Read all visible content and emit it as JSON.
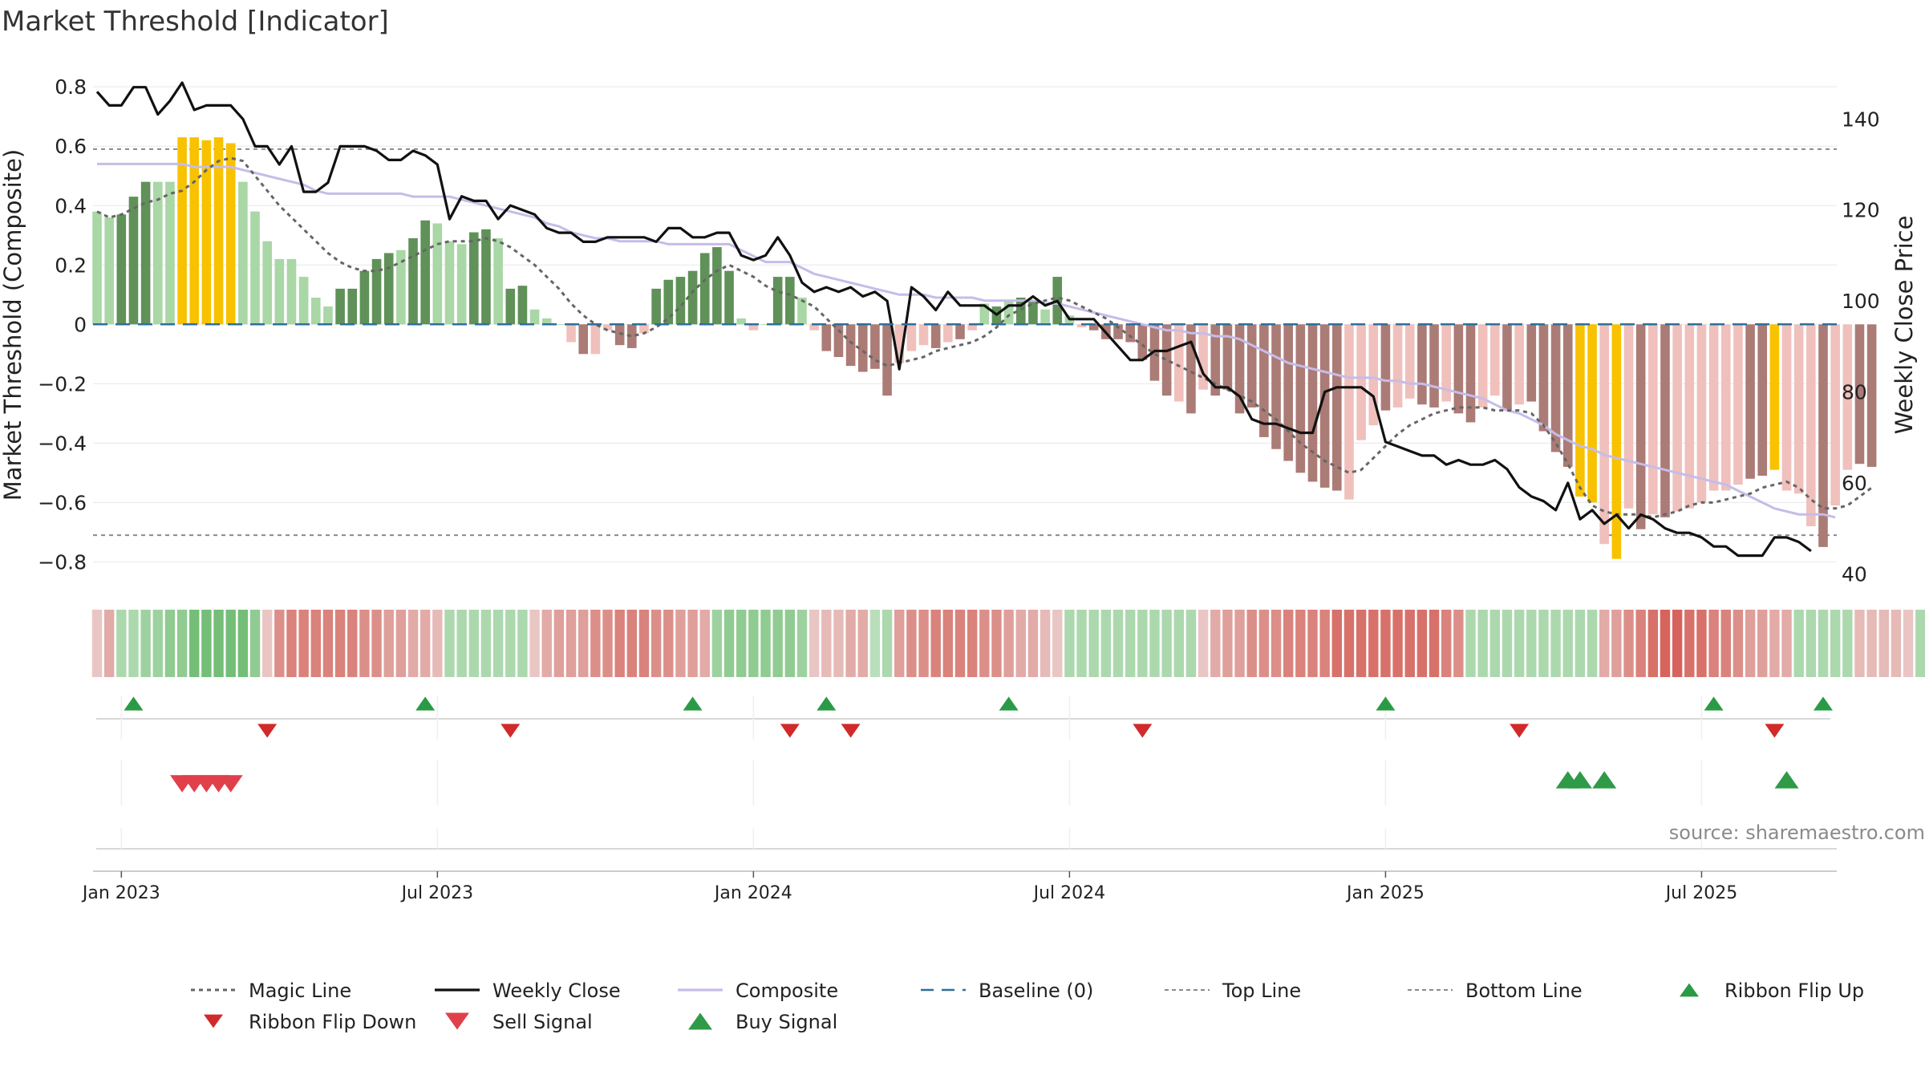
{
  "chart_data": {
    "type": "bar",
    "title": "Market Threshold [Indicator]",
    "ylabel": "Market Threshold (Composite)",
    "y2label": "Weekly Close Price",
    "source": "source: sharemaestro.com",
    "ylim": [
      -0.88,
      0.86
    ],
    "y2lim": [
      37.4,
      151.0
    ],
    "yticks": [
      0.8,
      0.6,
      0.4,
      0.2,
      0,
      -0.2,
      -0.4,
      -0.6,
      -0.8
    ],
    "ytick_labels": [
      "0.8",
      "0.6",
      "0.4",
      "0.2",
      "0",
      "−0.2",
      "−0.4",
      "−0.6",
      "−0.8"
    ],
    "y2ticks": [
      140,
      120,
      100,
      80,
      60,
      40
    ],
    "y2tick_labels": [
      "140",
      "120",
      "100",
      "80",
      "60",
      "40"
    ],
    "top_line": 0.59,
    "bottom_line": -0.71,
    "baseline": 0,
    "x_start": "2022-12-19",
    "weeks": 147,
    "xticks": [
      {
        "label": "Jan 2023",
        "week": 2
      },
      {
        "label": "Jul 2023",
        "week": 28
      },
      {
        "label": "Jan 2024",
        "week": 54
      },
      {
        "label": "Jul 2024",
        "week": 80
      },
      {
        "label": "Jan 2025",
        "week": 106
      },
      {
        "label": "Jul 2025",
        "week": 132
      }
    ],
    "composite_bars": [
      0.38,
      0.36,
      0.37,
      0.43,
      0.48,
      0.48,
      0.48,
      0.63,
      0.63,
      0.62,
      0.63,
      0.61,
      0.48,
      0.38,
      0.28,
      0.22,
      0.22,
      0.16,
      0.09,
      0.06,
      0.12,
      0.12,
      0.18,
      0.22,
      0.24,
      0.25,
      0.29,
      0.35,
      0.34,
      0.28,
      0.27,
      0.31,
      0.32,
      0.29,
      0.12,
      0.13,
      0.05,
      0.02,
      0,
      -0.06,
      -0.1,
      -0.1,
      -0.02,
      -0.07,
      -0.08,
      -0.03,
      0.12,
      0.15,
      0.16,
      0.18,
      0.24,
      0.26,
      0.18,
      0.02,
      -0.02,
      0,
      0.16,
      0.16,
      0.09,
      -0.02,
      -0.09,
      -0.11,
      -0.14,
      -0.16,
      -0.15,
      -0.24,
      -0.13,
      -0.09,
      -0.07,
      -0.08,
      -0.06,
      -0.05,
      -0.02,
      0.07,
      0.06,
      0.08,
      0.09,
      0.08,
      0.05,
      0.16,
      0.03,
      -0.01,
      -0.02,
      -0.05,
      -0.05,
      -0.06,
      -0.12,
      -0.19,
      -0.24,
      -0.26,
      -0.3,
      -0.22,
      -0.24,
      -0.22,
      -0.3,
      -0.28,
      -0.38,
      -0.42,
      -0.46,
      -0.5,
      -0.53,
      -0.55,
      -0.56,
      -0.59,
      -0.39,
      -0.34,
      -0.29,
      -0.28,
      -0.25,
      -0.27,
      -0.28,
      -0.26,
      -0.3,
      -0.33,
      -0.28,
      -0.24,
      -0.29,
      -0.27,
      -0.26,
      -0.36,
      -0.43,
      -0.48,
      -0.58,
      -0.6,
      -0.74,
      -0.79,
      -0.62,
      -0.69,
      -0.64,
      -0.65,
      -0.63,
      -0.62,
      -0.6,
      -0.56,
      -0.56,
      -0.54,
      -0.52,
      -0.51,
      -0.49,
      -0.56,
      -0.57,
      -0.68,
      -0.75,
      -0.61,
      -0.49,
      -0.47,
      -0.48
    ],
    "bar_categories": [
      1,
      1,
      2,
      2,
      2,
      1,
      1,
      3,
      3,
      3,
      3,
      3,
      1,
      1,
      1,
      1,
      1,
      1,
      1,
      1,
      2,
      2,
      2,
      2,
      2,
      1,
      2,
      2,
      1,
      1,
      1,
      2,
      2,
      1,
      2,
      2,
      1,
      1,
      1,
      4,
      5,
      4,
      4,
      5,
      5,
      4,
      2,
      2,
      2,
      2,
      2,
      2,
      2,
      1,
      4,
      1,
      2,
      2,
      1,
      4,
      5,
      5,
      5,
      5,
      5,
      5,
      4,
      4,
      4,
      5,
      4,
      5,
      4,
      1,
      2,
      1,
      2,
      2,
      1,
      2,
      1,
      4,
      5,
      5,
      5,
      5,
      5,
      5,
      5,
      4,
      5,
      4,
      5,
      5,
      5,
      5,
      5,
      5,
      5,
      5,
      5,
      5,
      5,
      4,
      4,
      4,
      5,
      4,
      4,
      5,
      5,
      4,
      5,
      5,
      4,
      4,
      5,
      4,
      5,
      5,
      5,
      5,
      3,
      3,
      4,
      3,
      4,
      5,
      4,
      5,
      4,
      4,
      4,
      4,
      4,
      4,
      5,
      5,
      3,
      4,
      4,
      4,
      5,
      4,
      4,
      5,
      5
    ],
    "bar_category_colors": {
      "1": "#a9d7a6",
      "2": "#5f9158",
      "3": "#f8c200",
      "4": "#f0c0bc",
      "5": "#ab7b76"
    },
    "weekly_close": [
      146,
      143,
      143,
      147,
      147,
      141,
      144,
      148,
      142,
      143,
      143,
      143,
      140,
      134,
      134,
      130,
      134,
      124,
      124,
      126,
      134,
      134,
      134,
      133,
      131,
      131,
      133,
      132,
      130,
      118,
      123,
      122,
      122,
      118,
      121,
      120,
      119,
      116,
      115,
      115,
      113,
      113,
      114,
      114,
      114,
      114,
      113,
      116,
      116,
      114,
      114,
      115,
      115,
      110,
      109,
      110,
      114,
      110,
      104,
      102,
      103,
      102,
      103,
      101,
      102,
      100,
      85,
      103,
      101,
      98,
      102,
      99,
      99,
      99,
      97,
      99,
      99,
      101,
      99,
      100,
      96,
      96,
      96,
      93,
      90,
      87,
      87,
      89,
      89,
      90,
      91,
      84,
      81,
      81,
      79,
      74,
      73,
      73,
      72,
      71,
      71,
      80,
      81,
      81,
      81,
      79,
      69,
      68,
      67,
      66,
      66,
      64,
      65,
      64,
      64,
      65,
      63,
      59,
      57,
      56,
      54,
      60,
      52,
      54,
      51,
      53,
      50,
      53,
      52,
      50,
      49,
      49,
      48,
      46,
      46,
      44,
      44,
      44,
      48,
      48,
      47,
      45
    ],
    "composite_line": [
      0.54,
      0.54,
      0.54,
      0.54,
      0.54,
      0.54,
      0.54,
      0.54,
      0.53,
      0.53,
      0.53,
      0.53,
      0.52,
      0.51,
      0.5,
      0.49,
      0.48,
      0.47,
      0.45,
      0.44,
      0.44,
      0.44,
      0.44,
      0.44,
      0.44,
      0.44,
      0.43,
      0.43,
      0.43,
      0.43,
      0.42,
      0.41,
      0.4,
      0.39,
      0.38,
      0.37,
      0.36,
      0.34,
      0.33,
      0.31,
      0.3,
      0.29,
      0.29,
      0.28,
      0.28,
      0.28,
      0.28,
      0.27,
      0.27,
      0.27,
      0.27,
      0.27,
      0.27,
      0.25,
      0.23,
      0.21,
      0.21,
      0.21,
      0.19,
      0.17,
      0.16,
      0.15,
      0.14,
      0.13,
      0.12,
      0.11,
      0.1,
      0.1,
      0.1,
      0.09,
      0.09,
      0.09,
      0.09,
      0.08,
      0.08,
      0.08,
      0.08,
      0.08,
      0.07,
      0.07,
      0.06,
      0.05,
      0.04,
      0.03,
      0.02,
      0.01,
      0.0,
      -0.01,
      -0.02,
      -0.02,
      -0.03,
      -0.03,
      -0.04,
      -0.04,
      -0.05,
      -0.07,
      -0.09,
      -0.11,
      -0.13,
      -0.14,
      -0.15,
      -0.16,
      -0.17,
      -0.18,
      -0.18,
      -0.18,
      -0.19,
      -0.19,
      -0.2,
      -0.2,
      -0.21,
      -0.22,
      -0.23,
      -0.24,
      -0.25,
      -0.27,
      -0.29,
      -0.3,
      -0.32,
      -0.34,
      -0.37,
      -0.39,
      -0.41,
      -0.42,
      -0.44,
      -0.45,
      -0.46,
      -0.47,
      -0.48,
      -0.49,
      -0.5,
      -0.51,
      -0.52,
      -0.53,
      -0.54,
      -0.56,
      -0.58,
      -0.6,
      -0.62,
      -0.63,
      -0.64,
      -0.64,
      -0.64,
      -0.65
    ],
    "magic_line": [
      0.38,
      0.36,
      0.37,
      0.39,
      0.41,
      0.42,
      0.44,
      0.45,
      0.48,
      0.52,
      0.55,
      0.56,
      0.55,
      0.5,
      0.45,
      0.4,
      0.36,
      0.32,
      0.28,
      0.24,
      0.21,
      0.19,
      0.18,
      0.18,
      0.19,
      0.21,
      0.23,
      0.25,
      0.27,
      0.28,
      0.28,
      0.28,
      0.29,
      0.28,
      0.26,
      0.23,
      0.2,
      0.16,
      0.12,
      0.07,
      0.03,
      0.0,
      -0.02,
      -0.03,
      -0.04,
      -0.03,
      -0.01,
      0.02,
      0.06,
      0.11,
      0.15,
      0.18,
      0.2,
      0.18,
      0.16,
      0.13,
      0.11,
      0.1,
      0.08,
      0.06,
      0.02,
      -0.02,
      -0.06,
      -0.09,
      -0.12,
      -0.14,
      -0.13,
      -0.12,
      -0.11,
      -0.09,
      -0.08,
      -0.07,
      -0.06,
      -0.04,
      -0.01,
      0.03,
      0.05,
      0.07,
      0.08,
      0.09,
      0.08,
      0.06,
      0.04,
      0.02,
      -0.01,
      -0.04,
      -0.07,
      -0.1,
      -0.12,
      -0.14,
      -0.16,
      -0.18,
      -0.2,
      -0.22,
      -0.24,
      -0.26,
      -0.29,
      -0.32,
      -0.36,
      -0.4,
      -0.43,
      -0.46,
      -0.48,
      -0.5,
      -0.49,
      -0.45,
      -0.41,
      -0.37,
      -0.34,
      -0.32,
      -0.3,
      -0.29,
      -0.28,
      -0.28,
      -0.28,
      -0.29,
      -0.29,
      -0.29,
      -0.3,
      -0.34,
      -0.4,
      -0.47,
      -0.55,
      -0.61,
      -0.63,
      -0.64,
      -0.64,
      -0.64,
      -0.65,
      -0.64,
      -0.63,
      -0.61,
      -0.6,
      -0.6,
      -0.59,
      -0.58,
      -0.57,
      -0.55,
      -0.54,
      -0.53,
      -0.55,
      -0.59,
      -0.62,
      -0.62,
      -0.61,
      -0.58,
      -0.55
    ],
    "ribbon": [
      -0.2,
      -0.4,
      0.3,
      0.3,
      0.4,
      0.4,
      0.5,
      0.5,
      0.7,
      0.7,
      0.7,
      0.7,
      0.7,
      0.5,
      -0.2,
      -0.6,
      -0.7,
      -0.7,
      -0.7,
      -0.7,
      -0.7,
      -0.7,
      -0.6,
      -0.6,
      -0.5,
      -0.5,
      -0.4,
      -0.4,
      -0.3,
      0.3,
      0.3,
      0.3,
      0.3,
      0.3,
      0.3,
      0.3,
      -0.2,
      -0.4,
      -0.5,
      -0.5,
      -0.5,
      -0.6,
      -0.6,
      -0.7,
      -0.7,
      -0.7,
      -0.6,
      -0.6,
      -0.5,
      -0.5,
      -0.4,
      0.4,
      0.5,
      0.5,
      0.5,
      0.5,
      0.5,
      0.5,
      0.4,
      -0.2,
      -0.3,
      -0.3,
      -0.4,
      -0.4,
      0.2,
      0.3,
      -0.5,
      -0.6,
      -0.6,
      -0.7,
      -0.7,
      -0.7,
      -0.7,
      -0.6,
      -0.6,
      -0.5,
      -0.4,
      -0.4,
      -0.3,
      -0.2,
      0.3,
      0.3,
      0.3,
      0.3,
      0.3,
      0.3,
      0.3,
      0.3,
      0.3,
      0.3,
      0.3,
      -0.2,
      -0.4,
      -0.5,
      -0.5,
      -0.6,
      -0.6,
      -0.6,
      -0.7,
      -0.7,
      -0.7,
      -0.7,
      -0.8,
      -0.8,
      -0.8,
      -0.8,
      -0.8,
      -0.8,
      -0.8,
      -0.8,
      -0.8,
      -0.7,
      -0.6,
      0.3,
      0.3,
      0.3,
      0.3,
      0.3,
      0.3,
      0.3,
      0.3,
      0.3,
      0.3,
      0.3,
      -0.4,
      -0.5,
      -0.6,
      -0.7,
      -0.8,
      -0.9,
      -0.9,
      -0.8,
      -0.8,
      -0.7,
      -0.7,
      -0.6,
      -0.5,
      -0.5,
      -0.4,
      -0.4,
      0.3,
      0.3,
      0.3,
      0.3,
      0.3,
      -0.3,
      -0.3,
      -0.3,
      -0.3,
      -0.2,
      0.3
    ],
    "ribbon_flip_up_weeks": [
      3,
      27,
      49,
      60,
      75,
      106,
      133,
      142
    ],
    "ribbon_flip_down_weeks": [
      14,
      34,
      57,
      62,
      86,
      117,
      138
    ],
    "sell_signal_weeks": [
      7,
      8,
      9,
      10,
      11
    ],
    "buy_signal_weeks": [
      121,
      122,
      124,
      139
    ],
    "legend": [
      {
        "label": "Magic Line",
        "kind": "dotted",
        "color": "#666666"
      },
      {
        "label": "Weekly Close",
        "kind": "solid",
        "color": "#111111"
      },
      {
        "label": "Composite",
        "kind": "solid",
        "color": "#c6bce8"
      },
      {
        "label": "Baseline (0)",
        "kind": "dashed",
        "color": "#2e6f9a"
      },
      {
        "label": "Top Line",
        "kind": "dotted-light",
        "color": "#8a8a8a"
      },
      {
        "label": "Bottom Line",
        "kind": "dotted-light",
        "color": "#8a8a8a"
      },
      {
        "label": "Ribbon Flip Up",
        "kind": "triangle-up",
        "color": "#2a9a46"
      },
      {
        "label": "Ribbon Flip Down",
        "kind": "triangle-down",
        "color": "#d12a2a"
      },
      {
        "label": "Sell Signal",
        "kind": "triangle-down",
        "color": "#e0404a"
      },
      {
        "label": "Buy Signal",
        "kind": "triangle-up",
        "color": "#2f9a48"
      }
    ]
  }
}
